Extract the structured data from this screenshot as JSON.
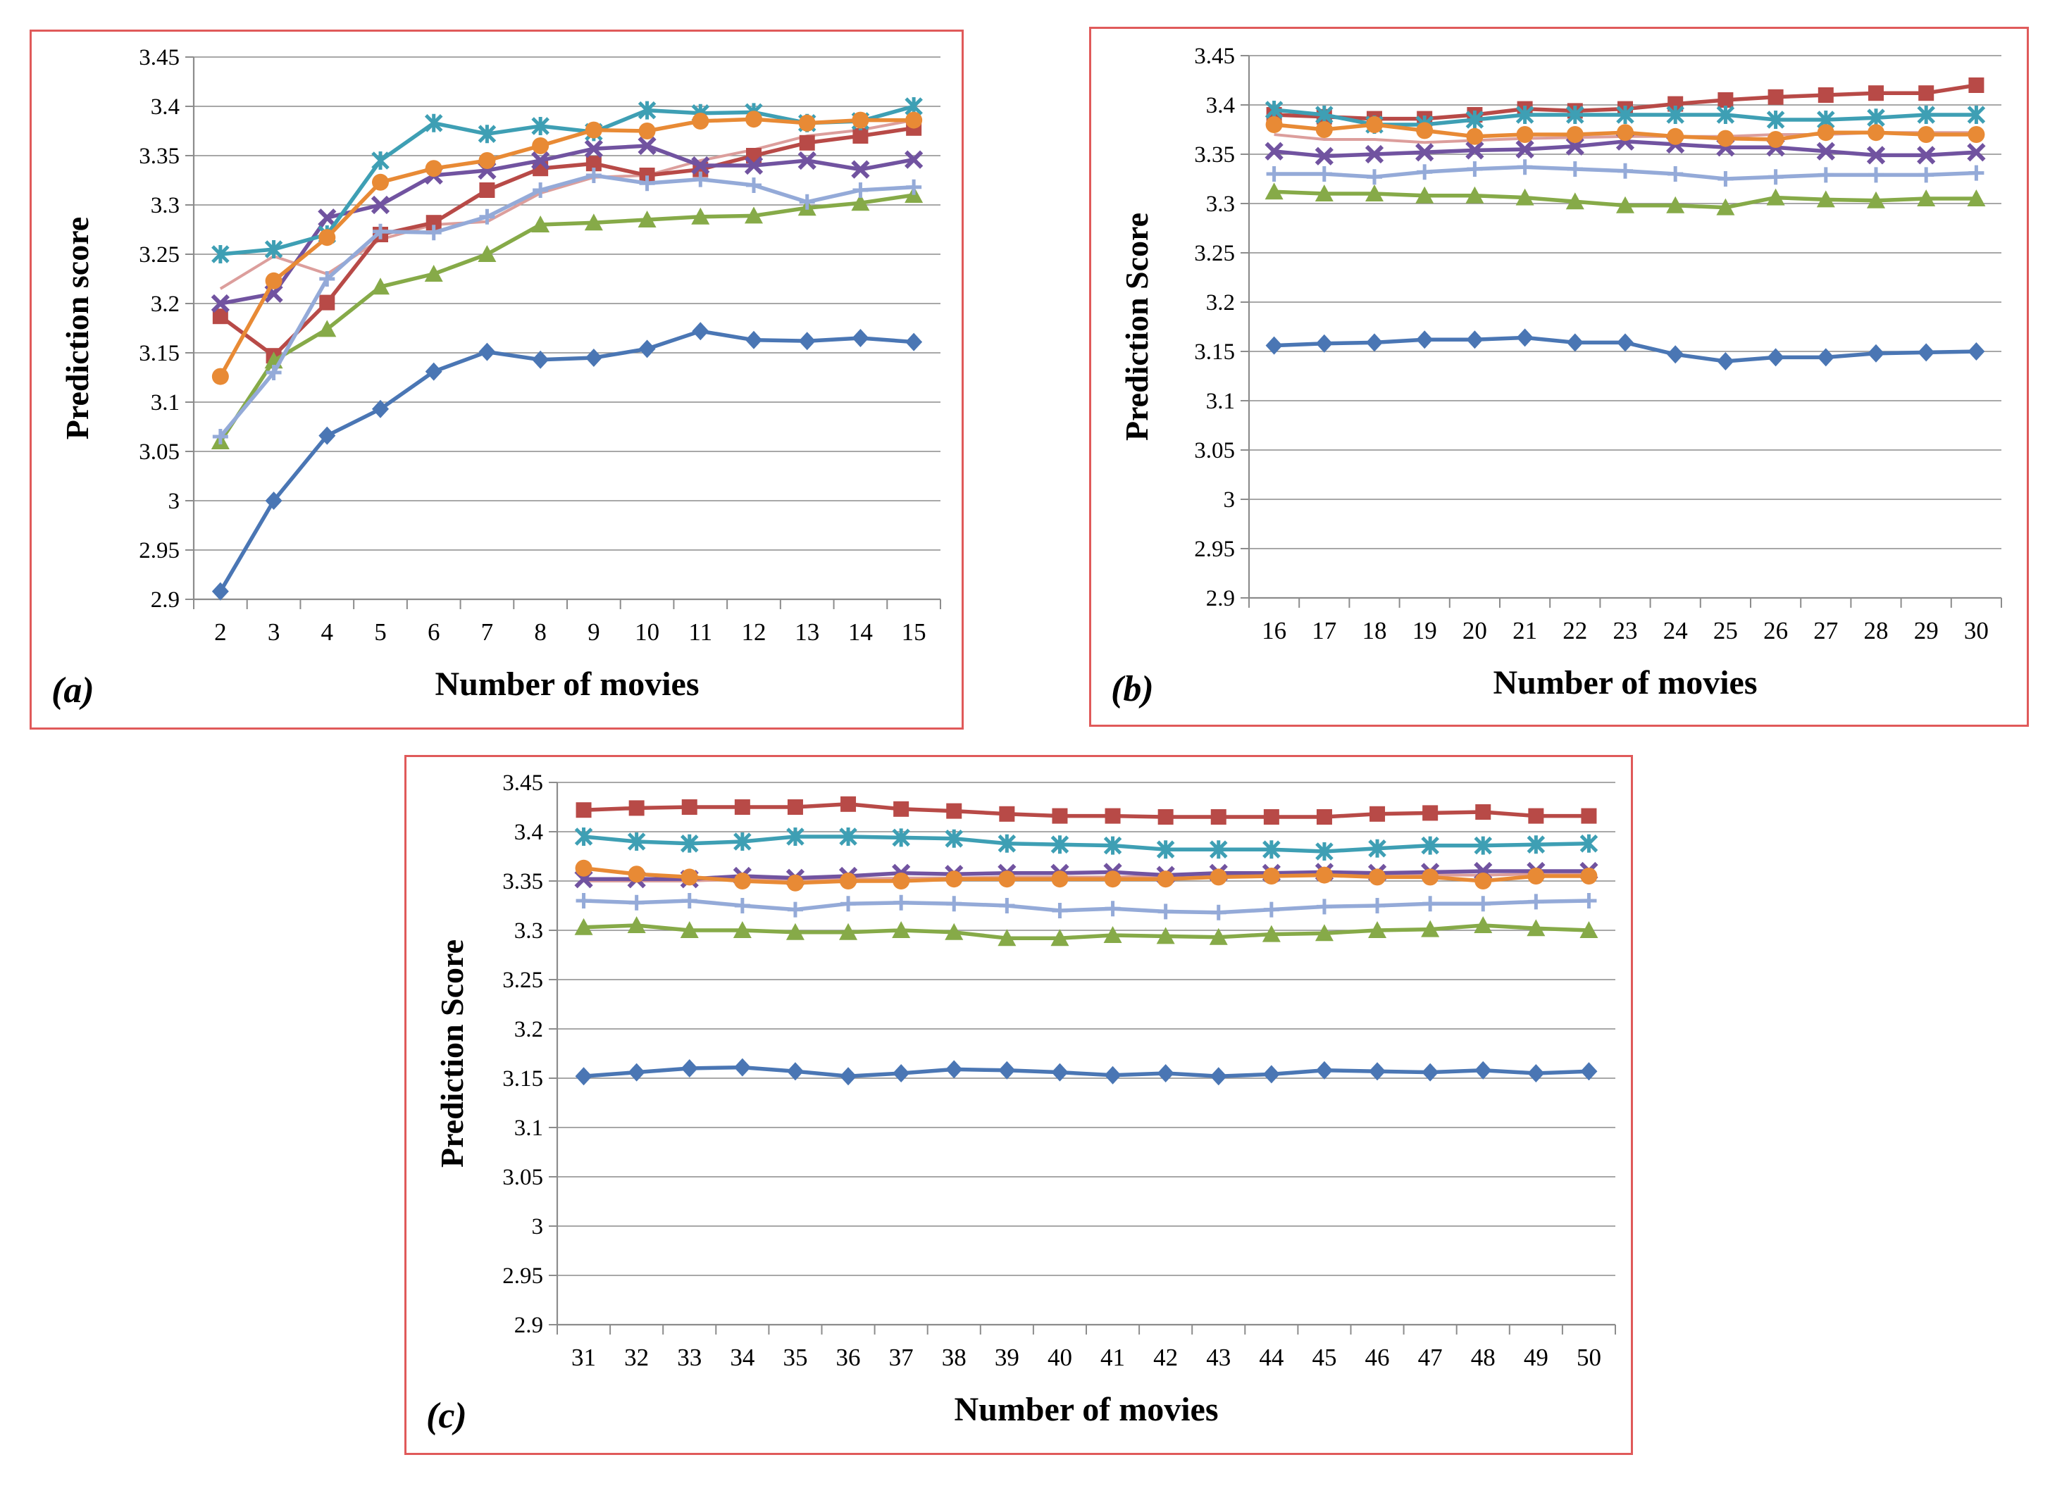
{
  "chart_data": [
    {
      "type": "line",
      "panel_label": "(a)",
      "xlabel": "Number of movies",
      "ylabel": "Prediction score",
      "ylim": [
        2.9,
        3.45
      ],
      "yticks": [
        "3.45",
        "3.4",
        "3.35",
        "3.3",
        "3.25",
        "3.2",
        "3.15",
        "3.1",
        "3.05",
        "3",
        "2.95",
        "2.9"
      ],
      "x": [
        2,
        3,
        4,
        5,
        6,
        7,
        8,
        9,
        10,
        11,
        12,
        13,
        14,
        15
      ],
      "grid": true,
      "series": [
        {
          "marker": "diamond",
          "color": "#4a76b4",
          "values": [
            2.908,
            3.0,
            3.066,
            3.093,
            3.131,
            3.151,
            3.143,
            3.145,
            3.154,
            3.172,
            3.163,
            3.162,
            3.165,
            3.161
          ]
        },
        {
          "marker": "square",
          "color": "#b84a47",
          "values": [
            3.187,
            3.147,
            3.201,
            3.27,
            3.282,
            3.315,
            3.337,
            3.342,
            3.33,
            3.336,
            3.35,
            3.363,
            3.37,
            3.378
          ]
        },
        {
          "marker": "triangle",
          "color": "#86aa48",
          "values": [
            3.06,
            3.142,
            3.174,
            3.217,
            3.23,
            3.25,
            3.28,
            3.282,
            3.285,
            3.288,
            3.289,
            3.297,
            3.302,
            3.31
          ]
        },
        {
          "marker": "x",
          "color": "#7153a0",
          "values": [
            3.2,
            3.21,
            3.287,
            3.3,
            3.33,
            3.335,
            3.345,
            3.357,
            3.36,
            3.34,
            3.34,
            3.345,
            3.336,
            3.346
          ]
        },
        {
          "marker": "star",
          "color": "#3e9fb4",
          "values": [
            3.25,
            3.255,
            3.27,
            3.345,
            3.383,
            3.372,
            3.38,
            3.374,
            3.396,
            3.393,
            3.394,
            3.383,
            3.385,
            3.4
          ]
        },
        {
          "marker": "circle",
          "color": "#e88a35",
          "values": [
            3.126,
            3.223,
            3.267,
            3.323,
            3.337,
            3.345,
            3.36,
            3.376,
            3.375,
            3.385,
            3.387,
            3.383,
            3.386,
            3.386
          ]
        },
        {
          "marker": "plus",
          "color": "#94aad8",
          "values": [
            3.065,
            3.13,
            3.225,
            3.273,
            3.272,
            3.288,
            3.315,
            3.33,
            3.322,
            3.326,
            3.32,
            3.303,
            3.315,
            3.318
          ]
        },
        {
          "marker": "none",
          "color": "#dc9e9c",
          "values": [
            3.215,
            3.248,
            3.23,
            3.265,
            3.28,
            3.283,
            3.312,
            3.328,
            3.33,
            3.345,
            3.356,
            3.37,
            3.376,
            3.386
          ]
        }
      ]
    },
    {
      "type": "line",
      "panel_label": "(b)",
      "xlabel": "Number of movies",
      "ylabel": "Prediction Score",
      "ylim": [
        2.9,
        3.45
      ],
      "yticks": [
        "3.45",
        "3.4",
        "3.35",
        "3.3",
        "3.25",
        "3.2",
        "3.15",
        "3.1",
        "3.05",
        "3",
        "2.95",
        "2.9"
      ],
      "x": [
        16,
        17,
        18,
        19,
        20,
        21,
        22,
        23,
        24,
        25,
        26,
        27,
        28,
        29,
        30
      ],
      "grid": true,
      "series": [
        {
          "marker": "diamond",
          "color": "#4a76b4",
          "values": [
            3.156,
            3.158,
            3.159,
            3.162,
            3.162,
            3.164,
            3.159,
            3.159,
            3.147,
            3.14,
            3.144,
            3.144,
            3.148,
            3.149,
            3.15
          ]
        },
        {
          "marker": "square",
          "color": "#b84a47",
          "values": [
            3.39,
            3.388,
            3.386,
            3.386,
            3.39,
            3.396,
            3.394,
            3.396,
            3.401,
            3.405,
            3.408,
            3.41,
            3.412,
            3.412,
            3.42
          ]
        },
        {
          "marker": "triangle",
          "color": "#86aa48",
          "values": [
            3.312,
            3.31,
            3.31,
            3.308,
            3.308,
            3.306,
            3.302,
            3.298,
            3.298,
            3.296,
            3.306,
            3.304,
            3.303,
            3.305,
            3.305
          ]
        },
        {
          "marker": "x",
          "color": "#7153a0",
          "values": [
            3.353,
            3.348,
            3.35,
            3.352,
            3.354,
            3.355,
            3.358,
            3.363,
            3.36,
            3.357,
            3.357,
            3.353,
            3.349,
            3.349,
            3.352
          ]
        },
        {
          "marker": "star",
          "color": "#3e9fb4",
          "values": [
            3.395,
            3.39,
            3.38,
            3.38,
            3.385,
            3.39,
            3.39,
            3.39,
            3.39,
            3.39,
            3.385,
            3.385,
            3.387,
            3.39,
            3.39
          ]
        },
        {
          "marker": "circle",
          "color": "#e88a35",
          "values": [
            3.38,
            3.375,
            3.38,
            3.374,
            3.368,
            3.37,
            3.37,
            3.372,
            3.368,
            3.366,
            3.365,
            3.372,
            3.372,
            3.37,
            3.37
          ]
        },
        {
          "marker": "plus",
          "color": "#94aad8",
          "values": [
            3.33,
            3.33,
            3.327,
            3.332,
            3.335,
            3.337,
            3.335,
            3.333,
            3.33,
            3.325,
            3.327,
            3.329,
            3.329,
            3.329,
            3.331
          ]
        },
        {
          "marker": "none",
          "color": "#dc9e9c",
          "values": [
            3.37,
            3.365,
            3.365,
            3.362,
            3.364,
            3.366,
            3.367,
            3.368,
            3.368,
            3.368,
            3.37,
            3.37,
            3.372,
            3.372,
            3.372
          ]
        }
      ]
    },
    {
      "type": "line",
      "panel_label": "(c)",
      "xlabel": "Number of movies",
      "ylabel": "Prediction Score",
      "ylim": [
        2.9,
        3.45
      ],
      "yticks": [
        "3.45",
        "3.4",
        "3.35",
        "3.3",
        "3.25",
        "3.2",
        "3.15",
        "3.1",
        "3.05",
        "3",
        "2.95",
        "2.9"
      ],
      "x": [
        31,
        32,
        33,
        34,
        35,
        36,
        37,
        38,
        39,
        40,
        41,
        42,
        43,
        44,
        45,
        46,
        47,
        48,
        49,
        50
      ],
      "grid": true,
      "series": [
        {
          "marker": "diamond",
          "color": "#4a76b4",
          "values": [
            3.152,
            3.156,
            3.16,
            3.161,
            3.157,
            3.152,
            3.155,
            3.159,
            3.158,
            3.156,
            3.153,
            3.155,
            3.152,
            3.154,
            3.158,
            3.157,
            3.156,
            3.158,
            3.155,
            3.157
          ]
        },
        {
          "marker": "square",
          "color": "#b84a47",
          "values": [
            3.422,
            3.424,
            3.425,
            3.425,
            3.425,
            3.428,
            3.423,
            3.421,
            3.418,
            3.416,
            3.416,
            3.415,
            3.415,
            3.415,
            3.415,
            3.418,
            3.419,
            3.42,
            3.416,
            3.416
          ]
        },
        {
          "marker": "triangle",
          "color": "#86aa48",
          "values": [
            3.303,
            3.305,
            3.3,
            3.3,
            3.298,
            3.298,
            3.3,
            3.298,
            3.292,
            3.292,
            3.295,
            3.294,
            3.293,
            3.296,
            3.297,
            3.3,
            3.301,
            3.305,
            3.302,
            3.3
          ]
        },
        {
          "marker": "x",
          "color": "#7153a0",
          "values": [
            3.352,
            3.352,
            3.352,
            3.355,
            3.353,
            3.355,
            3.358,
            3.357,
            3.358,
            3.358,
            3.359,
            3.356,
            3.358,
            3.358,
            3.359,
            3.358,
            3.359,
            3.36,
            3.36,
            3.36
          ]
        },
        {
          "marker": "star",
          "color": "#3e9fb4",
          "values": [
            3.395,
            3.39,
            3.388,
            3.39,
            3.395,
            3.395,
            3.394,
            3.393,
            3.388,
            3.387,
            3.386,
            3.382,
            3.382,
            3.382,
            3.38,
            3.383,
            3.386,
            3.386,
            3.387,
            3.388
          ]
        },
        {
          "marker": "circle",
          "color": "#e88a35",
          "values": [
            3.363,
            3.357,
            3.354,
            3.35,
            3.348,
            3.35,
            3.35,
            3.352,
            3.352,
            3.352,
            3.352,
            3.352,
            3.354,
            3.355,
            3.356,
            3.354,
            3.354,
            3.35,
            3.355,
            3.355
          ]
        },
        {
          "marker": "plus",
          "color": "#94aad8",
          "values": [
            3.33,
            3.328,
            3.33,
            3.325,
            3.321,
            3.327,
            3.328,
            3.327,
            3.325,
            3.32,
            3.322,
            3.319,
            3.318,
            3.321,
            3.324,
            3.325,
            3.327,
            3.327,
            3.329,
            3.33
          ]
        },
        {
          "marker": "none",
          "color": "#dc9e9c",
          "values": [
            3.35,
            3.35,
            3.35,
            3.352,
            3.352,
            3.352,
            3.353,
            3.353,
            3.354,
            3.354,
            3.354,
            3.355,
            3.355,
            3.355,
            3.356,
            3.356,
            3.356,
            3.356,
            3.357,
            3.357
          ]
        }
      ]
    }
  ]
}
